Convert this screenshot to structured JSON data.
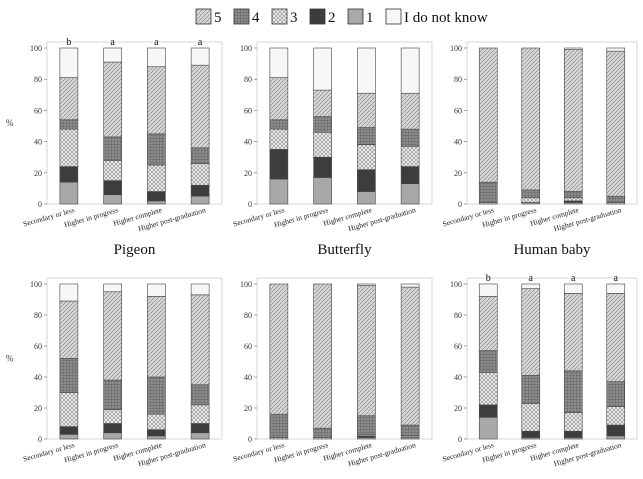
{
  "legend": [
    {
      "key": "5",
      "label": "5",
      "fill": "diag",
      "color": "#d6d6d6"
    },
    {
      "key": "4",
      "label": "4",
      "fill": "grid",
      "color": "#8c8c8c"
    },
    {
      "key": "3",
      "label": "3",
      "fill": "cross",
      "color": "#e8e8e8"
    },
    {
      "key": "2",
      "label": "2",
      "fill": "solid",
      "color": "#3d3d3d"
    },
    {
      "key": "1",
      "label": "1",
      "fill": "solid",
      "color": "#a8a8a8"
    },
    {
      "key": "dk",
      "label": "I do not know",
      "fill": "solid",
      "color": "#f7f7f7"
    }
  ],
  "chart_data": {
    "type": "bar",
    "stacked": true,
    "ylabel": "%",
    "ylim": [
      0,
      100
    ],
    "yticks": [
      0,
      20,
      40,
      60,
      80,
      100
    ],
    "categories": [
      "Secondary or less",
      "Higher in progress",
      "Higher complete",
      "Higher post-graduation"
    ],
    "stack_order": [
      "1",
      "2",
      "3",
      "4",
      "5",
      "dk"
    ],
    "panels": [
      {
        "title": "Pigeon",
        "letters": [
          "b",
          "a",
          "a",
          "a"
        ],
        "series": [
          {
            "name": "1",
            "values": [
              14,
              6,
              2,
              5
            ]
          },
          {
            "name": "2",
            "values": [
              10,
              9,
              6,
              7
            ]
          },
          {
            "name": "3",
            "values": [
              24,
              13,
              17,
              14
            ]
          },
          {
            "name": "4",
            "values": [
              6,
              15,
              20,
              10
            ]
          },
          {
            "name": "5",
            "values": [
              27,
              48,
              43,
              53
            ]
          },
          {
            "name": "I do not know",
            "values": [
              19,
              9,
              12,
              11
            ]
          }
        ]
      },
      {
        "title": "Butterfly",
        "letters": [
          "",
          "",
          "",
          ""
        ],
        "series": [
          {
            "name": "1",
            "values": [
              16,
              17,
              8,
              13
            ]
          },
          {
            "name": "2",
            "values": [
              19,
              13,
              14,
              11
            ]
          },
          {
            "name": "3",
            "values": [
              13,
              16,
              16,
              13
            ]
          },
          {
            "name": "4",
            "values": [
              6,
              10,
              11,
              11
            ]
          },
          {
            "name": "5",
            "values": [
              27,
              17,
              22,
              23
            ]
          },
          {
            "name": "I do not know",
            "values": [
              19,
              27,
              29,
              29
            ]
          }
        ]
      },
      {
        "title": "Human baby",
        "letters": [
          "",
          "",
          "",
          ""
        ],
        "series": [
          {
            "name": "1",
            "values": [
              0,
              1,
              1,
              0
            ]
          },
          {
            "name": "2",
            "values": [
              0,
              0,
              1,
              0
            ]
          },
          {
            "name": "3",
            "values": [
              1,
              3,
              2,
              1
            ]
          },
          {
            "name": "4",
            "values": [
              13,
              5,
              4,
              4
            ]
          },
          {
            "name": "5",
            "values": [
              86,
              91,
              91,
              93
            ]
          },
          {
            "name": "I do not know",
            "values": [
              0,
              0,
              1,
              2
            ]
          }
        ]
      },
      {
        "title": "",
        "letters": [
          "",
          "",
          "",
          ""
        ],
        "series": [
          {
            "name": "1",
            "values": [
              3,
              4,
              2,
              4
            ]
          },
          {
            "name": "2",
            "values": [
              5,
              6,
              4,
              6
            ]
          },
          {
            "name": "3",
            "values": [
              22,
              9,
              10,
              12
            ]
          },
          {
            "name": "4",
            "values": [
              22,
              19,
              24,
              13
            ]
          },
          {
            "name": "5",
            "values": [
              37,
              57,
              52,
              58
            ]
          },
          {
            "name": "I do not know",
            "values": [
              11,
              5,
              8,
              7
            ]
          }
        ]
      },
      {
        "title": "",
        "letters": [
          "",
          "",
          "",
          ""
        ],
        "series": [
          {
            "name": "1",
            "values": [
              0,
              0,
              1,
              1
            ]
          },
          {
            "name": "2",
            "values": [
              0,
              0,
              1,
              0
            ]
          },
          {
            "name": "3",
            "values": [
              1,
              1,
              1,
              1
            ]
          },
          {
            "name": "4",
            "values": [
              15,
              6,
              12,
              7
            ]
          },
          {
            "name": "5",
            "values": [
              84,
              93,
              84,
              89
            ]
          },
          {
            "name": "I do not know",
            "values": [
              0,
              0,
              1,
              2
            ]
          }
        ]
      },
      {
        "title": "",
        "letters": [
          "b",
          "a",
          "a",
          "a"
        ],
        "series": [
          {
            "name": "1",
            "values": [
              14,
              1,
              1,
              2
            ]
          },
          {
            "name": "2",
            "values": [
              8,
              4,
              4,
              7
            ]
          },
          {
            "name": "3",
            "values": [
              21,
              18,
              12,
              12
            ]
          },
          {
            "name": "4",
            "values": [
              14,
              18,
              27,
              16
            ]
          },
          {
            "name": "5",
            "values": [
              35,
              56,
              50,
              57
            ]
          },
          {
            "name": "I do not know",
            "values": [
              8,
              3,
              6,
              6
            ]
          }
        ]
      }
    ]
  }
}
